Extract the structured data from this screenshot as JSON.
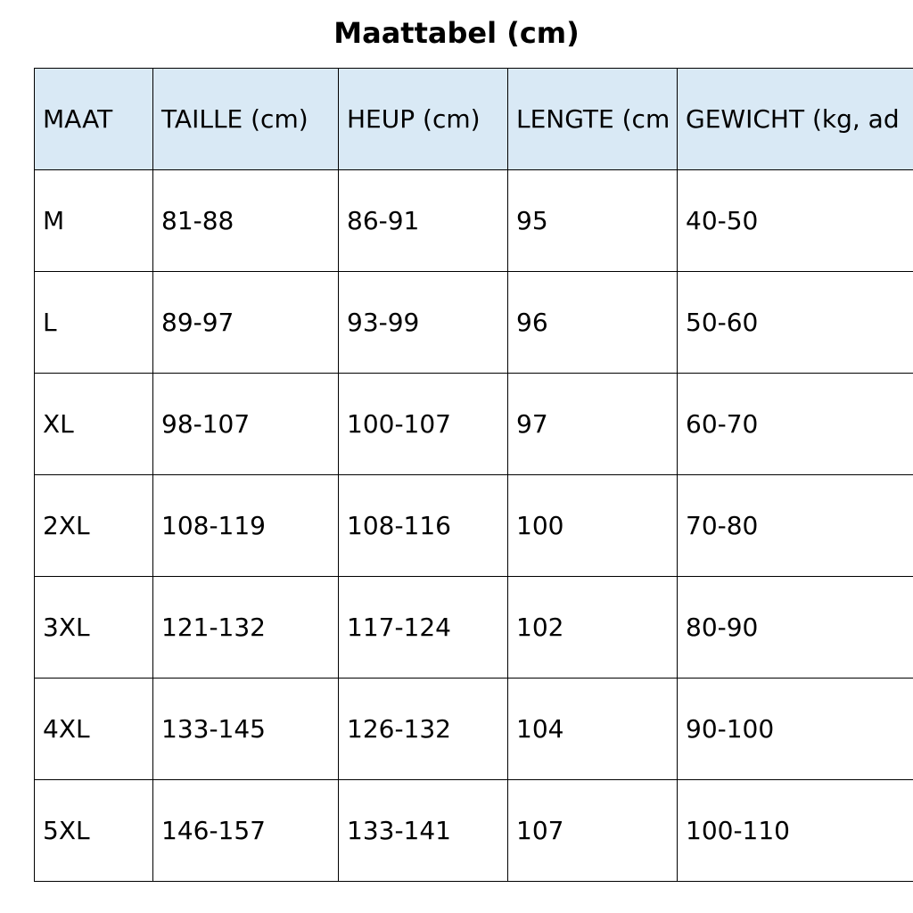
{
  "title": "Maattabel (cm)",
  "table": {
    "header": [
      "MAAT",
      "TAILLE (cm)",
      "HEUP (cm)",
      "LENGTE (cm",
      "GEWICHT (kg, ad"
    ],
    "rows": [
      [
        "M",
        "81-88",
        "86-91",
        "95",
        "40-50"
      ],
      [
        "L",
        "89-97",
        "93-99",
        "96",
        "50-60"
      ],
      [
        "XL",
        "98-107",
        "100-107",
        "97",
        "60-70"
      ],
      [
        "2XL",
        "108-119",
        "108-116",
        "100",
        "70-80"
      ],
      [
        "3XL",
        "121-132",
        "117-124",
        "102",
        "80-90"
      ],
      [
        "4XL",
        "133-145",
        "126-132",
        "104",
        "90-100"
      ],
      [
        "5XL",
        "146-157",
        "133-141",
        "107",
        "100-110"
      ]
    ]
  }
}
